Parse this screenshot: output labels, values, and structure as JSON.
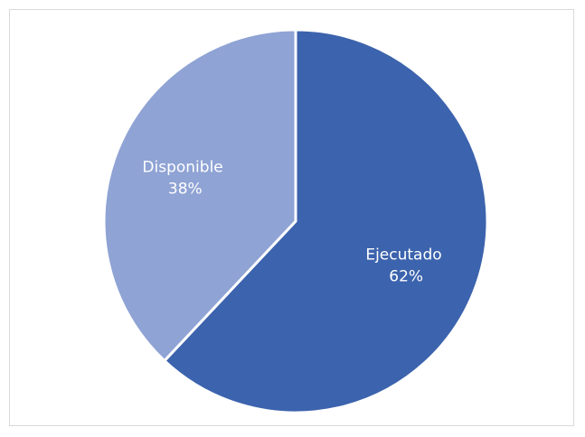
{
  "chart_data": {
    "type": "pie",
    "title": "",
    "categories": [
      "Ejecutado",
      "Disponible"
    ],
    "values": [
      62,
      38
    ],
    "labels": [
      {
        "name": "Ejecutado",
        "percent": "62%"
      },
      {
        "name": "Disponible",
        "percent": "38%"
      }
    ],
    "colors": [
      "#3c63ad",
      "#8fa3d4"
    ],
    "label_color": "#ffffff",
    "legend": "none",
    "start_angle_deg": 0,
    "direction": "clockwise"
  }
}
